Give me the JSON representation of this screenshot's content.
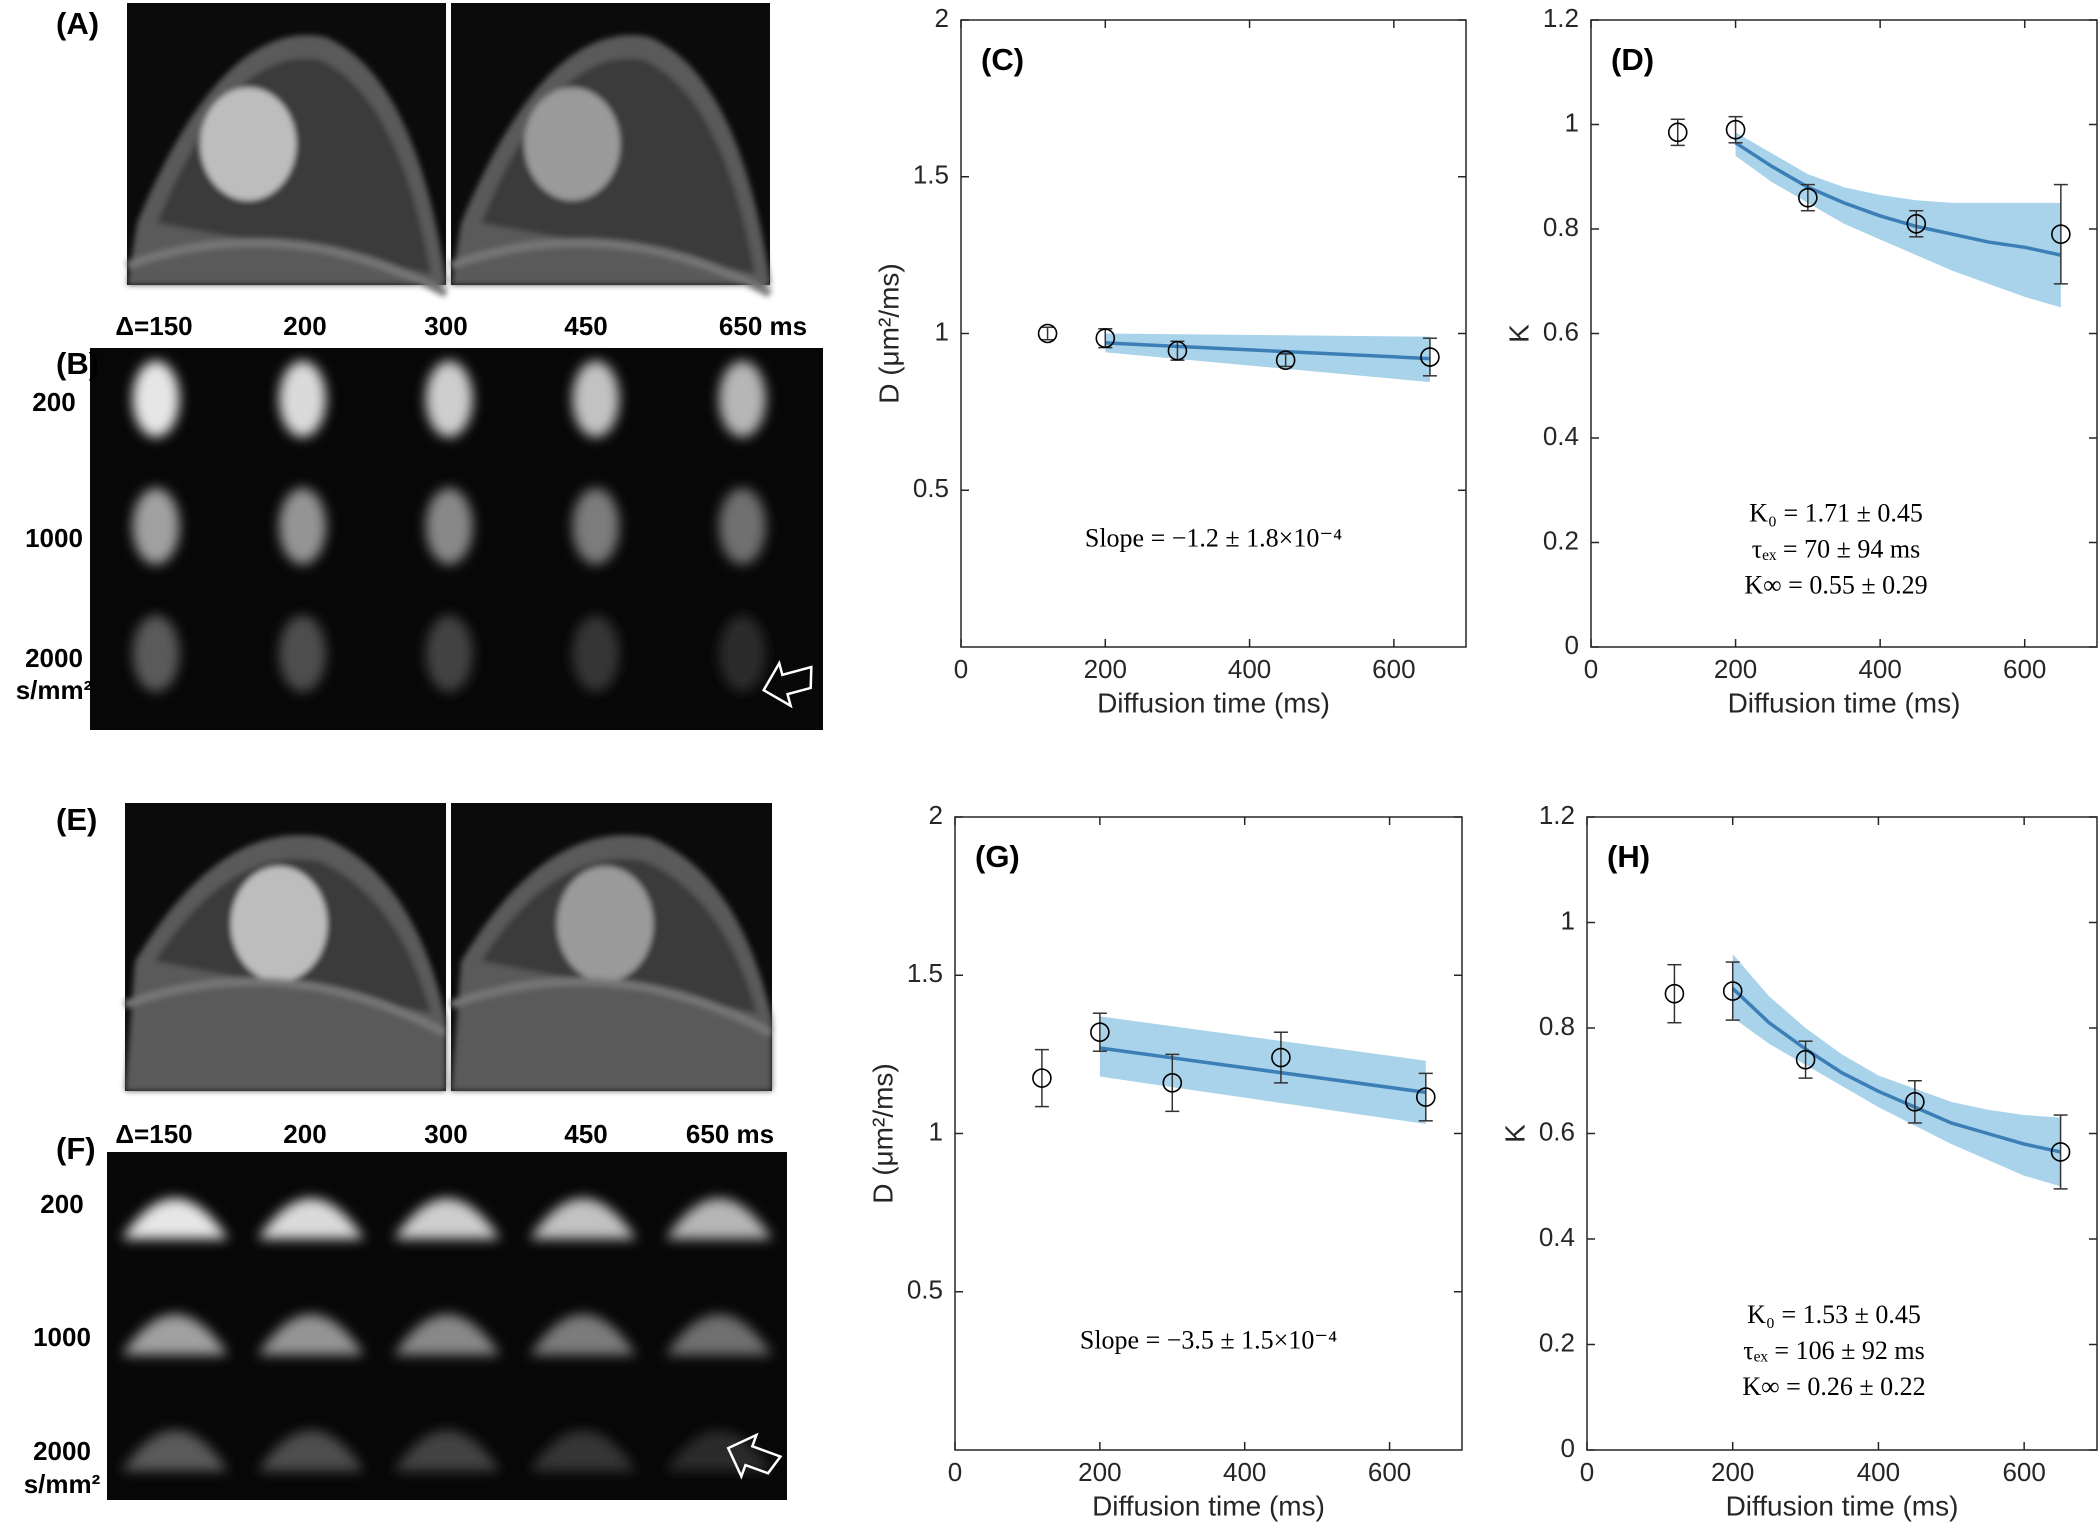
{
  "chart_data": [
    {
      "type": "scatter",
      "title": "(C)",
      "xlabel": "Diffusion time (ms)",
      "ylabel": "D (μm²/ms)",
      "xlim": [
        0,
        700
      ],
      "ylim": [
        0,
        2
      ],
      "xticks": [
        0,
        200,
        400,
        600
      ],
      "yticks": [
        0.5,
        1,
        1.5,
        2
      ],
      "x": [
        120,
        200,
        300,
        450,
        650
      ],
      "series": [
        {
          "color": "#000000",
          "values": [
            1.0,
            0.985,
            0.945,
            0.915,
            0.925
          ],
          "errors": [
            0.02,
            0.03,
            0.03,
            0.02,
            0.06
          ]
        }
      ],
      "fit": {
        "color": "#3b7fb6",
        "band_color": "#a9d3ea",
        "x": [
          200,
          650
        ],
        "values": [
          0.97,
          0.92
        ],
        "lower": [
          0.94,
          0.845
        ],
        "upper": [
          1.0,
          0.99
        ]
      },
      "annotations": [
        "Slope = −1.2 ± 1.8×10⁻⁴"
      ]
    },
    {
      "type": "scatter",
      "title": "(D)",
      "xlabel": "Diffusion time (ms)",
      "ylabel": "K",
      "xlim": [
        0,
        700
      ],
      "ylim": [
        0,
        1.2
      ],
      "xticks": [
        0,
        200,
        400,
        600
      ],
      "yticks": [
        0,
        0.2,
        0.4,
        0.6,
        0.8,
        1,
        1.2
      ],
      "x": [
        120,
        200,
        300,
        450,
        650
      ],
      "series": [
        {
          "color": "#000000",
          "values": [
            0.985,
            0.99,
            0.86,
            0.81,
            0.79
          ],
          "errors": [
            0.025,
            0.025,
            0.025,
            0.025,
            0.095
          ]
        }
      ],
      "fit": {
        "color": "#3b7fb6",
        "band_color": "#a9d3ea",
        "x": [
          200,
          250,
          300,
          350,
          400,
          450,
          500,
          550,
          600,
          650
        ],
        "values": [
          0.965,
          0.92,
          0.88,
          0.85,
          0.825,
          0.805,
          0.79,
          0.775,
          0.765,
          0.75
        ],
        "lower": [
          0.94,
          0.89,
          0.85,
          0.81,
          0.78,
          0.75,
          0.72,
          0.695,
          0.67,
          0.65
        ],
        "upper": [
          0.985,
          0.945,
          0.905,
          0.88,
          0.865,
          0.855,
          0.85,
          0.85,
          0.85,
          0.85
        ]
      },
      "annotations": [
        "K₀ = 1.71 ± 0.45",
        "τₑₓ = 70 ± 94 ms",
        "K∞ = 0.55 ± 0.29"
      ]
    },
    {
      "type": "scatter",
      "title": "(G)",
      "xlabel": "Diffusion time (ms)",
      "ylabel": "D (μm²/ms)",
      "xlim": [
        0,
        700
      ],
      "ylim": [
        0,
        2
      ],
      "xticks": [
        0,
        200,
        400,
        600
      ],
      "yticks": [
        0.5,
        1,
        1.5,
        2
      ],
      "x": [
        120,
        200,
        300,
        450,
        650
      ],
      "series": [
        {
          "color": "#000000",
          "values": [
            1.175,
            1.32,
            1.16,
            1.24,
            1.115
          ],
          "errors": [
            0.09,
            0.06,
            0.09,
            0.08,
            0.075
          ]
        }
      ],
      "fit": {
        "color": "#3b7fb6",
        "band_color": "#a9d3ea",
        "x": [
          200,
          650
        ],
        "values": [
          1.27,
          1.13
        ],
        "lower": [
          1.18,
          1.03
        ],
        "upper": [
          1.37,
          1.23
        ]
      },
      "annotations": [
        "Slope = −3.5 ± 1.5×10⁻⁴"
      ]
    },
    {
      "type": "scatter",
      "title": "(H)",
      "xlabel": "Diffusion time (ms)",
      "ylabel": "K",
      "xlim": [
        0,
        700
      ],
      "ylim": [
        0,
        1.2
      ],
      "xticks": [
        0,
        200,
        400,
        600
      ],
      "yticks": [
        0,
        0.2,
        0.4,
        0.6,
        0.8,
        1,
        1.2
      ],
      "x": [
        120,
        200,
        300,
        450,
        650
      ],
      "series": [
        {
          "color": "#000000",
          "values": [
            0.865,
            0.87,
            0.74,
            0.66,
            0.565
          ],
          "errors": [
            0.055,
            0.055,
            0.035,
            0.04,
            0.07
          ]
        }
      ],
      "fit": {
        "color": "#3b7fb6",
        "band_color": "#a9d3ea",
        "x": [
          200,
          250,
          300,
          350,
          400,
          450,
          500,
          550,
          600,
          650
        ],
        "values": [
          0.875,
          0.81,
          0.76,
          0.715,
          0.68,
          0.65,
          0.62,
          0.6,
          0.58,
          0.565
        ],
        "lower": [
          0.82,
          0.77,
          0.73,
          0.69,
          0.65,
          0.615,
          0.58,
          0.55,
          0.52,
          0.5
        ],
        "upper": [
          0.94,
          0.86,
          0.8,
          0.75,
          0.71,
          0.685,
          0.66,
          0.645,
          0.635,
          0.63
        ]
      },
      "annotations": [
        "K₀ = 1.53 ± 0.45",
        "τₑₓ = 106 ± 92 ms",
        "K∞ = 0.26 ± 0.22"
      ]
    }
  ],
  "image_panels": [
    {
      "label": "(A)"
    },
    {
      "label": "(B)",
      "columns": [
        "Δ=150",
        "200",
        "300",
        "450",
        "650 ms"
      ],
      "rows": [
        "200",
        "1000",
        "2000"
      ],
      "unit": "s/mm²"
    },
    {
      "label": "(E)"
    },
    {
      "label": "(F)",
      "columns": [
        "Δ=150",
        "200",
        "300",
        "450",
        "650 ms"
      ],
      "rows": [
        "200",
        "1000",
        "2000"
      ],
      "unit": "s/mm²"
    }
  ]
}
